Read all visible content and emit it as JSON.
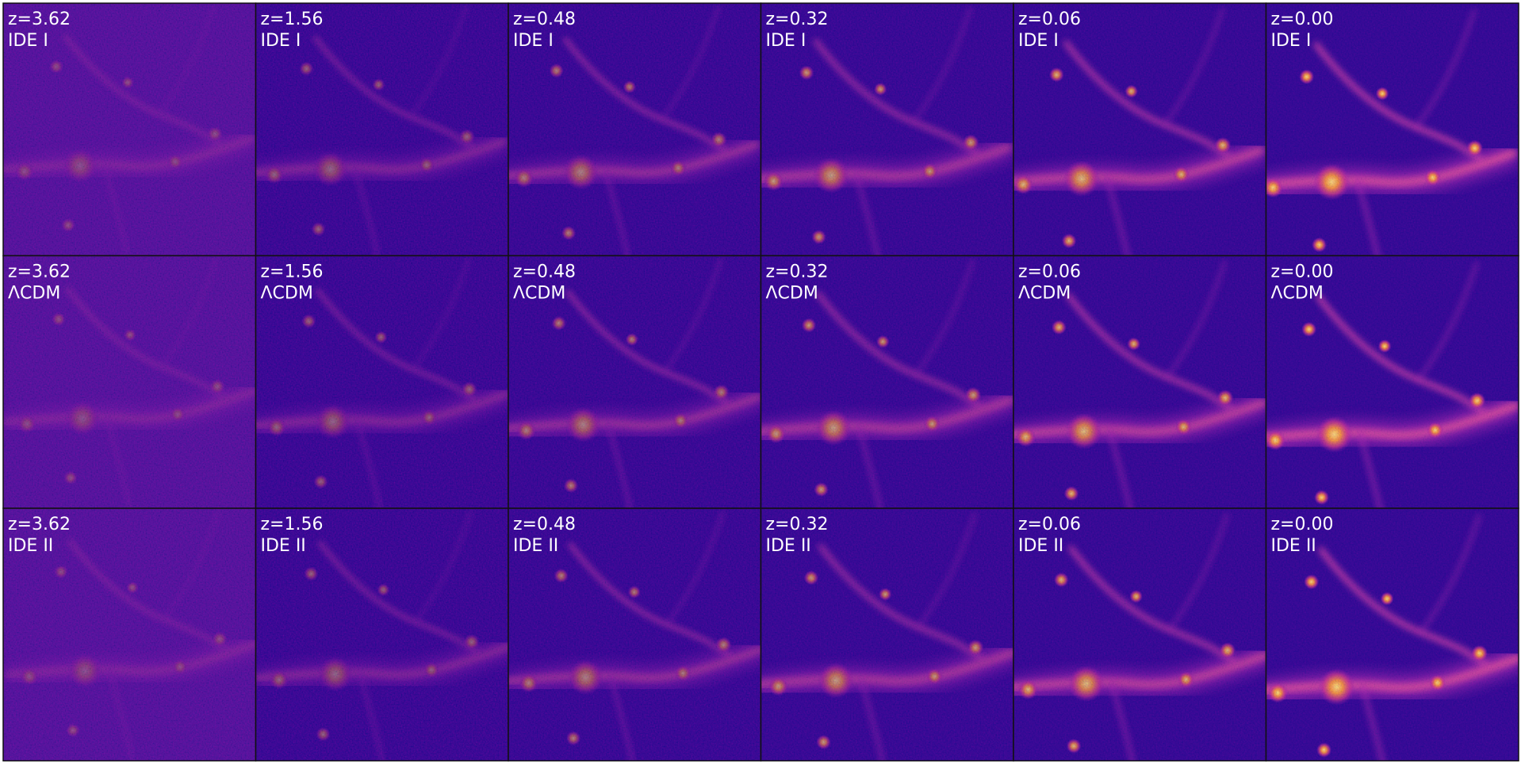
{
  "panels": {
    "redshifts": [
      "z=3.62",
      "z=1.56",
      "z=0.48",
      "z=0.32",
      "z=0.06",
      "z=0.00"
    ],
    "rows": [
      {
        "label": "IDE I"
      },
      {
        "label": "ΛCDM"
      },
      {
        "label": "IDE II"
      }
    ]
  }
}
